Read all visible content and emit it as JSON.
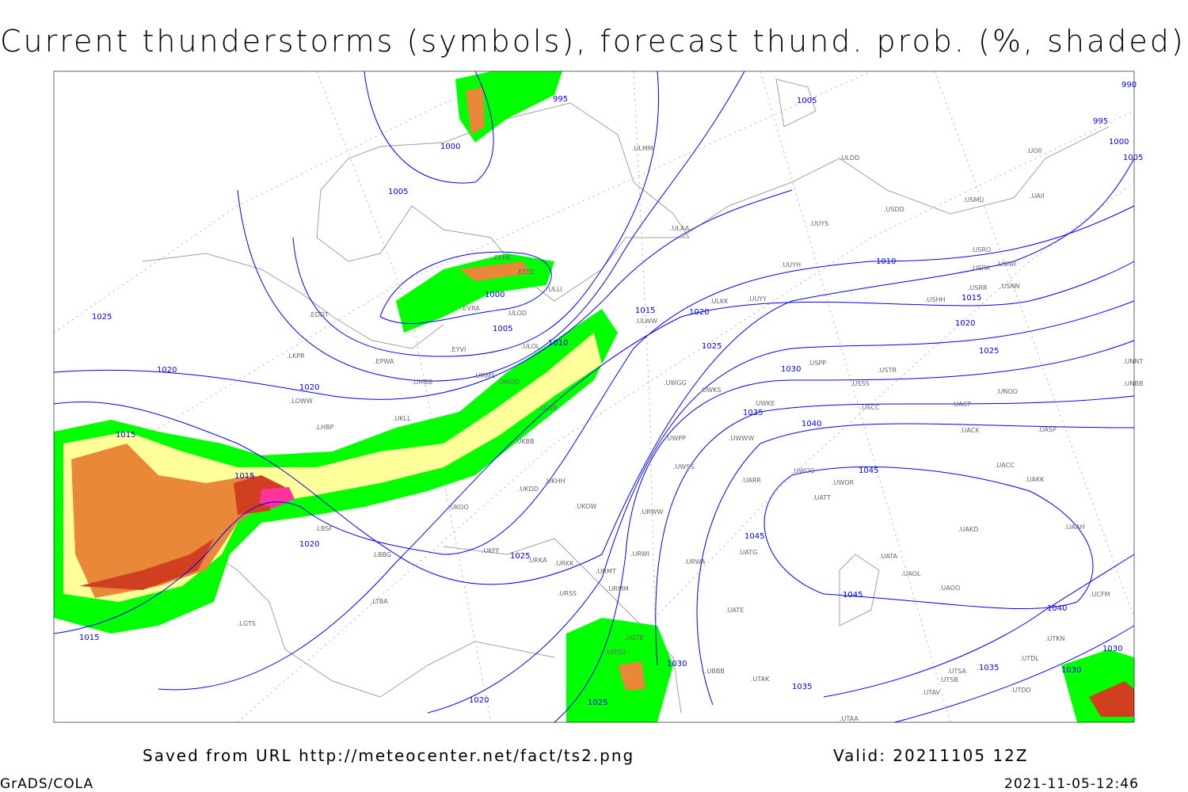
{
  "title": "Current thunderstorms (symbols), forecast thund. prob. (%, shaded)",
  "footer": {
    "source": "Saved from URL http://meteocenter.net/fact/ts2.png",
    "valid": "Valid: 20211105 12Z",
    "software": "GrADS/COLA",
    "timestamp": "2021-11-05-12:46"
  },
  "colors": {
    "isobar": "#0000ff",
    "station": "#666666",
    "coastline": "#a0a0a0",
    "prob_low": "#00ff00",
    "prob_mid": "#ffff99",
    "prob_high": "#e88838",
    "prob_max": "#d04020",
    "active_storm": "#ff3399"
  },
  "isobar_labels": [
    "995",
    "1000",
    "1005",
    "1005",
    "1000",
    "1005",
    "1010",
    "1015",
    "1020",
    "1025",
    "1025",
    "1020",
    "1020",
    "1015",
    "1015",
    "1020",
    "1025",
    "1030",
    "1035",
    "1040",
    "1045",
    "1045",
    "1040",
    "1035",
    "1030",
    "1025",
    "1020",
    "1015",
    "1010",
    "1005",
    "1000",
    "995",
    "990",
    "1030",
    "1020",
    "1015",
    "1025",
    "1045",
    "1035",
    "1030"
  ],
  "stations": [
    "ULMM",
    "ULLI",
    "ULAA",
    "ULDD",
    "UUYS",
    "USDD",
    "USMU",
    "UOII",
    "UUYH",
    "USRO",
    "USRK",
    "USNR",
    "USRR",
    "USNN",
    "USHH",
    "ULKK",
    "UUYY",
    "ULWW",
    "ULOL",
    "UMMS",
    "UMOO",
    "UMBB",
    "EYVI",
    "EPWA",
    "LKPR",
    "LOWW",
    "LHBP",
    "UKLL",
    "UKBB",
    "UUEE",
    "UWGG",
    "UWKS",
    "UWKE",
    "UWWW",
    "UWPP",
    "USPP",
    "USTR",
    "USSS",
    "USCC",
    "UACP",
    "UNOO",
    "UNBB",
    "UNNT",
    "UACK",
    "UASP",
    "UAKK",
    "UACC",
    "UWOO",
    "UWOR",
    "UATT",
    "UARR",
    "UWSS",
    "URWW",
    "UKDD",
    "UKHH",
    "UKOO",
    "UKFF",
    "URKA",
    "URKK",
    "URSS",
    "URMT",
    "URMM",
    "URWA",
    "UATG",
    "UATE",
    "UAKD",
    "UATA",
    "UAOL",
    "UAOO",
    "UAAH",
    "UGTB",
    "UDSG",
    "UBBB",
    "UTAK",
    "UTAA",
    "UTSB",
    "UTSA",
    "UTAV",
    "UTDD",
    "LBBG",
    "LBSF",
    "LGTS",
    "EFHK",
    "EEEE",
    "EVRA",
    "ULOD",
    "EDDT",
    "UKOW",
    "URWI",
    "UAII",
    "UCFM",
    "UTDL",
    "UTKN",
    "LTBA"
  ]
}
